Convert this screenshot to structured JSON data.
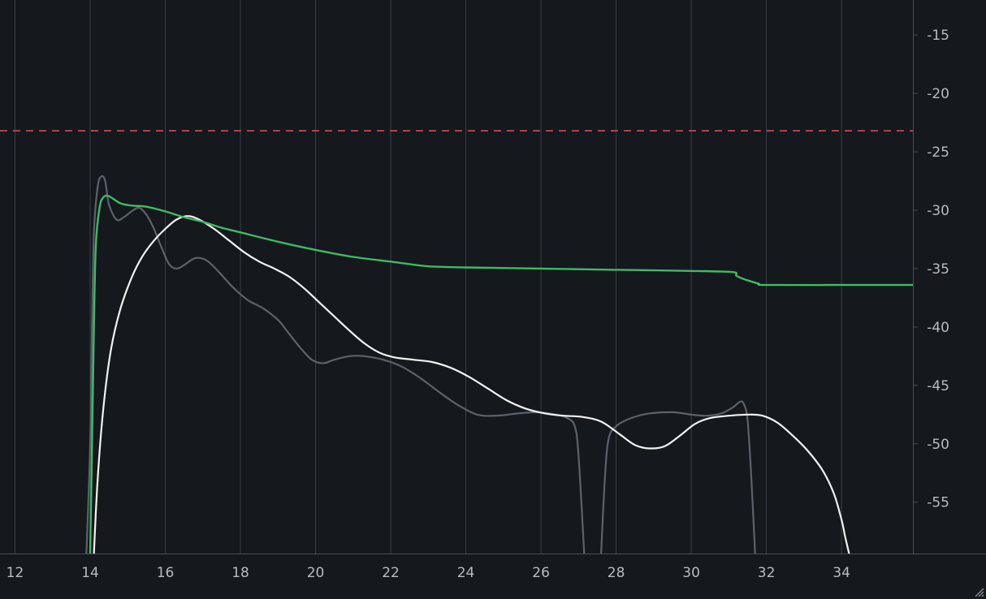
{
  "chart_data": {
    "type": "line",
    "xlabel": "",
    "ylabel": "",
    "xlim": [
      11.6,
      35.9
    ],
    "ylim": [
      -59.4,
      -12
    ],
    "x_ticks": [
      12,
      14,
      16,
      18,
      20,
      22,
      24,
      26,
      28,
      30,
      32,
      34
    ],
    "x_tick_labels": [
      "12",
      "14",
      "16",
      "18",
      "20",
      "22",
      "24",
      "26",
      "28",
      "30",
      "32",
      "34"
    ],
    "y_ticks": [
      -15,
      -20,
      -25,
      -30,
      -35,
      -40,
      -45,
      -50,
      -55
    ],
    "y_tick_labels": [
      "-15",
      "-20",
      "-25",
      "-30",
      "-35",
      "-40",
      "-45",
      "-50",
      "-55"
    ],
    "grid": true,
    "threshold": {
      "y": -23.2,
      "color": "#e0505a",
      "style": "dashed"
    },
    "series": [
      {
        "color": "#5b626a",
        "points": [
          [
            13.9,
            -59.4
          ],
          [
            14.0,
            -50
          ],
          [
            14.05,
            -40
          ],
          [
            14.1,
            -32
          ],
          [
            14.2,
            -28
          ],
          [
            14.3,
            -27.1
          ],
          [
            14.4,
            -27.5
          ],
          [
            14.5,
            -29.5
          ],
          [
            14.7,
            -30.8
          ],
          [
            14.9,
            -30.6
          ],
          [
            15.1,
            -30.1
          ],
          [
            15.3,
            -29.8
          ],
          [
            15.5,
            -30.4
          ],
          [
            15.7,
            -31.6
          ],
          [
            15.9,
            -33.2
          ],
          [
            16.1,
            -34.6
          ],
          [
            16.3,
            -35
          ],
          [
            16.5,
            -34.7
          ],
          [
            16.8,
            -34.1
          ],
          [
            17.1,
            -34.3
          ],
          [
            17.4,
            -35.2
          ],
          [
            17.8,
            -36.6
          ],
          [
            18.2,
            -37.7
          ],
          [
            18.6,
            -38.4
          ],
          [
            19.0,
            -39.4
          ],
          [
            19.3,
            -40.6
          ],
          [
            19.6,
            -41.8
          ],
          [
            19.9,
            -42.8
          ],
          [
            20.2,
            -43.1
          ],
          [
            20.5,
            -42.8
          ],
          [
            20.9,
            -42.5
          ],
          [
            21.3,
            -42.5
          ],
          [
            21.8,
            -42.8
          ],
          [
            22.3,
            -43.4
          ],
          [
            22.8,
            -44.4
          ],
          [
            23.3,
            -45.6
          ],
          [
            23.8,
            -46.7
          ],
          [
            24.3,
            -47.5
          ],
          [
            24.8,
            -47.6
          ],
          [
            25.4,
            -47.4
          ],
          [
            25.9,
            -47.3
          ],
          [
            26.4,
            -47.5
          ],
          [
            26.7,
            -47.8
          ],
          [
            26.9,
            -48.5
          ],
          [
            27.0,
            -51
          ],
          [
            27.15,
            -59.4
          ]
        ]
      },
      {
        "color": "#5b626a",
        "points": [
          [
            27.6,
            -59.4
          ],
          [
            27.7,
            -53
          ],
          [
            27.8,
            -49.6
          ],
          [
            28.0,
            -48.5
          ],
          [
            28.4,
            -47.8
          ],
          [
            28.9,
            -47.4
          ],
          [
            29.5,
            -47.3
          ],
          [
            30.0,
            -47.5
          ],
          [
            30.4,
            -47.6
          ],
          [
            30.8,
            -47.4
          ],
          [
            31.1,
            -46.9
          ],
          [
            31.3,
            -46.4
          ],
          [
            31.4,
            -46.6
          ],
          [
            31.5,
            -48
          ],
          [
            31.6,
            -53
          ],
          [
            31.7,
            -59.4
          ]
        ]
      },
      {
        "color": "#f2f2f2",
        "points": [
          [
            14.1,
            -59.4
          ],
          [
            14.2,
            -53
          ],
          [
            14.35,
            -47
          ],
          [
            14.55,
            -42
          ],
          [
            14.8,
            -38.5
          ],
          [
            15.1,
            -35.8
          ],
          [
            15.4,
            -33.9
          ],
          [
            15.7,
            -32.6
          ],
          [
            16.0,
            -31.6
          ],
          [
            16.3,
            -30.8
          ],
          [
            16.6,
            -30.5
          ],
          [
            16.9,
            -30.8
          ],
          [
            17.3,
            -31.6
          ],
          [
            17.7,
            -32.6
          ],
          [
            18.1,
            -33.6
          ],
          [
            18.5,
            -34.4
          ],
          [
            18.9,
            -35
          ],
          [
            19.3,
            -35.7
          ],
          [
            19.7,
            -36.7
          ],
          [
            20.1,
            -37.9
          ],
          [
            20.5,
            -39.1
          ],
          [
            20.9,
            -40.3
          ],
          [
            21.3,
            -41.4
          ],
          [
            21.7,
            -42.2
          ],
          [
            22.1,
            -42.6
          ],
          [
            22.6,
            -42.8
          ],
          [
            23.1,
            -43
          ],
          [
            23.6,
            -43.5
          ],
          [
            24.1,
            -44.3
          ],
          [
            24.6,
            -45.3
          ],
          [
            25.1,
            -46.3
          ],
          [
            25.6,
            -47
          ],
          [
            26.1,
            -47.4
          ],
          [
            26.6,
            -47.6
          ],
          [
            27.1,
            -47.7
          ],
          [
            27.6,
            -48.1
          ],
          [
            28.1,
            -49.2
          ],
          [
            28.5,
            -50.1
          ],
          [
            28.9,
            -50.4
          ],
          [
            29.3,
            -50.2
          ],
          [
            29.7,
            -49.3
          ],
          [
            30.1,
            -48.3
          ],
          [
            30.5,
            -47.8
          ],
          [
            31.0,
            -47.6
          ],
          [
            31.5,
            -47.5
          ],
          [
            31.9,
            -47.6
          ],
          [
            32.3,
            -48.2
          ],
          [
            32.7,
            -49.3
          ],
          [
            33.1,
            -50.6
          ],
          [
            33.5,
            -52.3
          ],
          [
            33.8,
            -54.3
          ],
          [
            34.0,
            -56.5
          ],
          [
            34.1,
            -58
          ],
          [
            34.2,
            -59.4
          ]
        ]
      },
      {
        "color": "#3dbb65",
        "points": [
          [
            14.0,
            -59.4
          ],
          [
            14.05,
            -50
          ],
          [
            14.1,
            -40
          ],
          [
            14.15,
            -33
          ],
          [
            14.25,
            -29.8
          ],
          [
            14.35,
            -28.9
          ],
          [
            14.5,
            -28.8
          ],
          [
            14.8,
            -29.4
          ],
          [
            15.1,
            -29.6
          ],
          [
            15.5,
            -29.7
          ],
          [
            16.0,
            -30.1
          ],
          [
            16.5,
            -30.6
          ],
          [
            17.0,
            -31
          ],
          [
            17.5,
            -31.5
          ],
          [
            18.0,
            -31.9
          ],
          [
            19.0,
            -32.7
          ],
          [
            20.0,
            -33.4
          ],
          [
            21.0,
            -34
          ],
          [
            22.0,
            -34.4
          ],
          [
            23.0,
            -34.8
          ],
          [
            24.0,
            -34.9
          ],
          [
            26.0,
            -35
          ],
          [
            28.0,
            -35.1
          ],
          [
            30.0,
            -35.2
          ],
          [
            31.1,
            -35.3
          ],
          [
            31.2,
            -35.6
          ],
          [
            31.4,
            -35.9
          ],
          [
            31.6,
            -36.1
          ],
          [
            31.8,
            -36.3
          ],
          [
            32.0,
            -36.4
          ],
          [
            34.0,
            -36.4
          ],
          [
            35.9,
            -36.4
          ]
        ]
      }
    ]
  }
}
